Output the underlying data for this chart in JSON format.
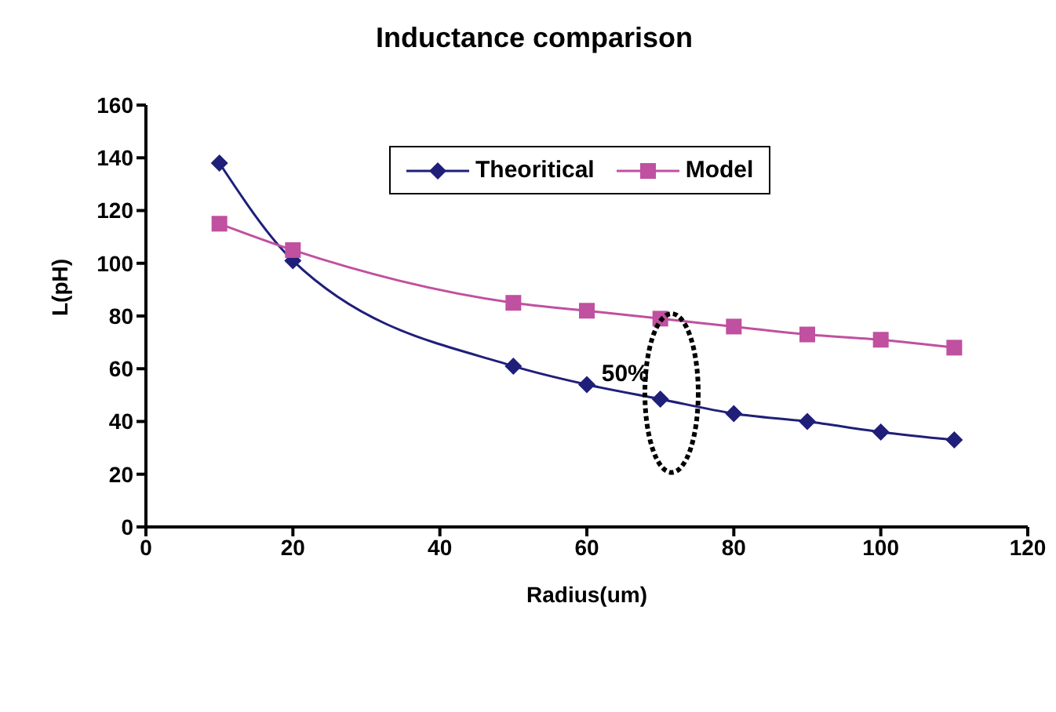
{
  "chart_data": {
    "type": "line",
    "title": "Inductance comparison",
    "xlabel": "Radius(um)",
    "ylabel": "L(pH)",
    "x": [
      10,
      20,
      50,
      60,
      70,
      80,
      90,
      100,
      110
    ],
    "series": [
      {
        "name": "Theoritical",
        "color": "#1f1f7a",
        "marker": "diamond",
        "values": [
          138,
          101,
          61,
          54,
          48.5,
          43,
          40,
          36,
          33
        ]
      },
      {
        "name": "Model",
        "color": "#c050a0",
        "marker": "square",
        "values": [
          115,
          105,
          85,
          82,
          79,
          76,
          73,
          71,
          68
        ]
      }
    ],
    "xlim": [
      0,
      120
    ],
    "xticks": [
      0,
      20,
      40,
      60,
      80,
      100,
      120
    ],
    "ylim": [
      0,
      160
    ],
    "yticks": [
      0,
      20,
      40,
      60,
      80,
      100,
      120,
      140,
      160
    ],
    "annotations": [
      "50%"
    ],
    "grid": false,
    "legend": "top"
  }
}
